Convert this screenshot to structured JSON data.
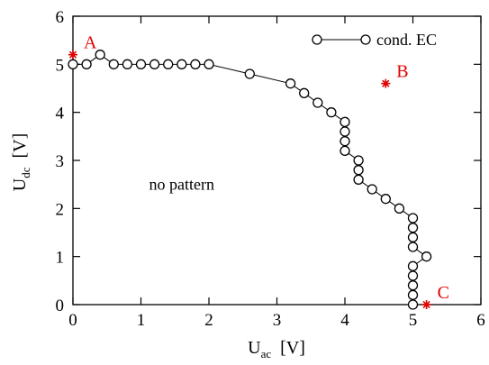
{
  "chart_data": {
    "type": "line",
    "xlabel_main": "U",
    "xlabel_sub": "ac",
    "xlabel_unit": "[V]",
    "ylabel_main": "U",
    "ylabel_sub": "dc",
    "ylabel_unit": "[V]",
    "xlim": [
      0,
      6
    ],
    "ylim": [
      0,
      6
    ],
    "xticks": [
      0,
      1,
      2,
      3,
      4,
      5,
      6
    ],
    "yticks": [
      0,
      1,
      2,
      3,
      4,
      5,
      6
    ],
    "grid": false,
    "legend_position": "top-right",
    "series": [
      {
        "name": "cond. EC",
        "marker": "open-circle",
        "color": "#000000",
        "points": [
          [
            0,
            5
          ],
          [
            0.2,
            5
          ],
          [
            0.4,
            5.2
          ],
          [
            0.6,
            5
          ],
          [
            0.8,
            5
          ],
          [
            1.0,
            5
          ],
          [
            1.2,
            5
          ],
          [
            1.4,
            5
          ],
          [
            1.6,
            5
          ],
          [
            1.8,
            5
          ],
          [
            2.0,
            5
          ],
          [
            2.6,
            4.8
          ],
          [
            3.2,
            4.6
          ],
          [
            3.4,
            4.4
          ],
          [
            3.6,
            4.2
          ],
          [
            3.8,
            4.0
          ],
          [
            4.0,
            3.8
          ],
          [
            4.0,
            3.6
          ],
          [
            4.0,
            3.4
          ],
          [
            4.0,
            3.2
          ],
          [
            4.2,
            3.0
          ],
          [
            4.2,
            2.8
          ],
          [
            4.2,
            2.6
          ],
          [
            4.4,
            2.4
          ],
          [
            4.6,
            2.2
          ],
          [
            4.8,
            2.0
          ],
          [
            5.0,
            1.8
          ],
          [
            5.0,
            1.6
          ],
          [
            5.0,
            1.4
          ],
          [
            5.0,
            1.2
          ],
          [
            5.2,
            1.0
          ],
          [
            5.0,
            0.8
          ],
          [
            5.0,
            0.6
          ],
          [
            5.0,
            0.4
          ],
          [
            5.0,
            0.2
          ],
          [
            5.0,
            0.0
          ]
        ]
      }
    ],
    "marked_points": [
      {
        "label": "A",
        "x": 0.0,
        "y": 5.2,
        "color": "#e00000"
      },
      {
        "label": "B",
        "x": 4.6,
        "y": 4.6,
        "color": "#e00000"
      },
      {
        "label": "C",
        "x": 5.2,
        "y": 0.0,
        "color": "#e00000"
      }
    ],
    "annotations": [
      {
        "text": "no pattern",
        "x": 1.6,
        "y": 2.5
      }
    ]
  }
}
